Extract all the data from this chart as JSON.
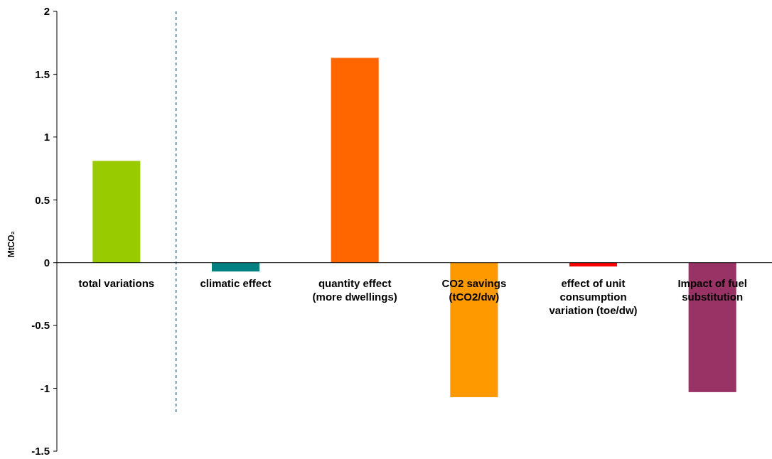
{
  "chart_data": {
    "type": "bar",
    "ylabel": "MtCO₂",
    "categories": [
      "total variations",
      "climatic effect",
      "quantity effect (more dwellings)",
      "CO2 savings (tCO2/dw)",
      "effect of unit consumption variation (toe/dw)",
      "Impact of fuel substitution"
    ],
    "values": [
      0.81,
      -0.07,
      1.63,
      -1.07,
      -0.03,
      -1.03
    ],
    "colors": [
      "#99cc00",
      "#008080",
      "#ff6600",
      "#ff9900",
      "#ff0000",
      "#993366"
    ],
    "ylim": [
      -1.5,
      2
    ],
    "yticks": [
      -1.5,
      -1,
      -0.5,
      0,
      0.5,
      1,
      1.5,
      2
    ],
    "grid": false
  }
}
